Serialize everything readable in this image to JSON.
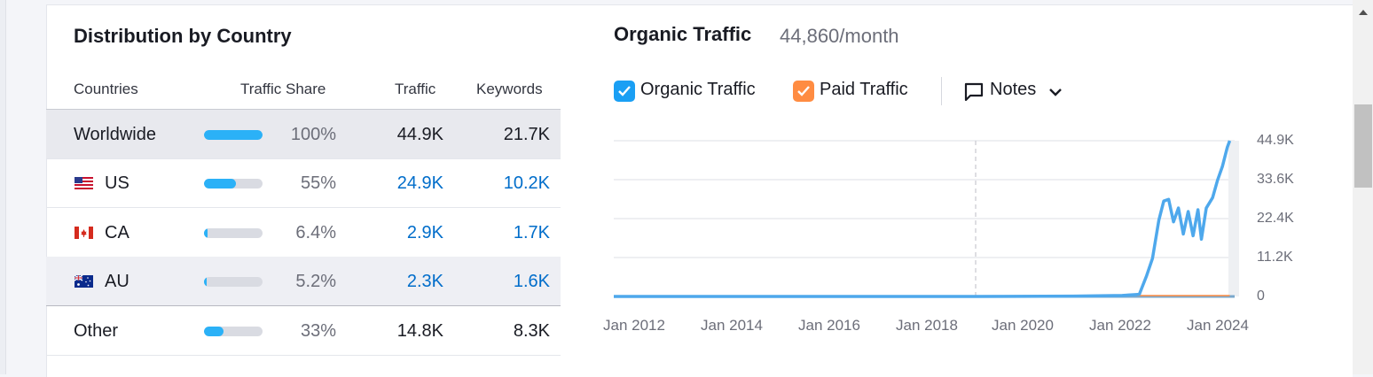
{
  "country_table": {
    "title": "Distribution by Country",
    "headers": {
      "countries": "Countries",
      "share": "Traffic Share",
      "traffic": "Traffic",
      "keywords": "Keywords"
    },
    "rows": [
      {
        "name": "Worldwide",
        "share_label": "100%",
        "share": 1.0,
        "traffic": "44.9K",
        "keywords": "21.7K",
        "flag": ""
      },
      {
        "name": "US",
        "share_label": "55%",
        "share": 0.55,
        "traffic": "24.9K",
        "keywords": "10.2K",
        "flag": "us-flag-icon"
      },
      {
        "name": "CA",
        "share_label": "6.4%",
        "share": 0.064,
        "traffic": "2.9K",
        "keywords": "1.7K",
        "flag": "ca-flag-icon"
      },
      {
        "name": "AU",
        "share_label": "5.2%",
        "share": 0.052,
        "traffic": "2.3K",
        "keywords": "1.6K",
        "flag": "au-flag-icon"
      },
      {
        "name": "Other",
        "share_label": "33%",
        "share": 0.33,
        "traffic": "14.8K",
        "keywords": "8.3K",
        "flag": ""
      }
    ]
  },
  "traffic_panel": {
    "title": "Organic Traffic",
    "subtitle": "44,860/month",
    "legend": {
      "organic_label": "Organic Traffic",
      "paid_label": "Paid Traffic",
      "notes_label": "Notes"
    },
    "colors": {
      "organic": "#1a9ff4",
      "paid": "#ff8c42",
      "line": "#4ea8ec"
    }
  },
  "chart_data": {
    "type": "line",
    "title": "",
    "xlabel": "",
    "ylabel": "",
    "x_ticks": [
      "Jan 2012",
      "Jan 2014",
      "Jan 2016",
      "Jan 2018",
      "Jan 2020",
      "Jan 2022",
      "Jan 2024"
    ],
    "y_ticks": [
      "0",
      "11.2K",
      "22.4K",
      "33.6K",
      "44.9K"
    ],
    "ylim": [
      0,
      44900
    ],
    "xlim": [
      2011.6,
      2024.3
    ],
    "grid": true,
    "series": [
      {
        "name": "Organic Traffic",
        "points": [
          [
            2011.6,
            0
          ],
          [
            2016.0,
            0
          ],
          [
            2019.0,
            0
          ],
          [
            2021.0,
            100
          ],
          [
            2022.0,
            300
          ],
          [
            2022.35,
            600
          ],
          [
            2022.5,
            6000
          ],
          [
            2022.62,
            11000
          ],
          [
            2022.75,
            22000
          ],
          [
            2022.85,
            27500
          ],
          [
            2022.95,
            28000
          ],
          [
            2023.05,
            21500
          ],
          [
            2023.15,
            25500
          ],
          [
            2023.25,
            18000
          ],
          [
            2023.35,
            24500
          ],
          [
            2023.45,
            17500
          ],
          [
            2023.55,
            25000
          ],
          [
            2023.62,
            16500
          ],
          [
            2023.72,
            25500
          ],
          [
            2023.85,
            28500
          ],
          [
            2023.95,
            33500
          ],
          [
            2024.05,
            37500
          ],
          [
            2024.15,
            43000
          ],
          [
            2024.2,
            44900
          ]
        ]
      },
      {
        "name": "Paid Traffic",
        "points": [
          [
            2022.3,
            0
          ],
          [
            2024.2,
            0
          ]
        ]
      }
    ]
  }
}
